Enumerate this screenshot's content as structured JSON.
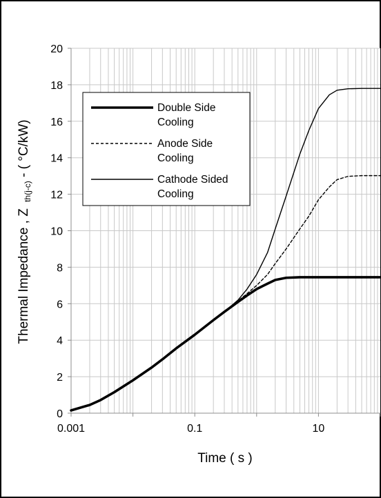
{
  "chart_data": {
    "type": "line",
    "x_scale": "log",
    "xlabel": "Time ( s )",
    "ylabel": {
      "prefix": "Thermal Impedance , Z",
      "subscript": "th(j-c)",
      "suffix": " - ( °C/kW)"
    },
    "xlim": [
      0.001,
      100
    ],
    "ylim": [
      0,
      20
    ],
    "x_ticks": [
      {
        "value": 0.001,
        "label": "0.001"
      },
      {
        "value": 0.1,
        "label": "0.1"
      },
      {
        "value": 10,
        "label": "10"
      }
    ],
    "y_ticks": [
      {
        "value": 0,
        "label": "0"
      },
      {
        "value": 2,
        "label": "2"
      },
      {
        "value": 4,
        "label": "4"
      },
      {
        "value": 6,
        "label": "6"
      },
      {
        "value": 8,
        "label": "8"
      },
      {
        "value": 10,
        "label": "10"
      },
      {
        "value": 12,
        "label": "12"
      },
      {
        "value": 14,
        "label": "14"
      },
      {
        "value": 16,
        "label": "16"
      },
      {
        "value": 18,
        "label": "18"
      },
      {
        "value": 20,
        "label": "20"
      }
    ],
    "grid": true,
    "legend_position": "top-left",
    "series": [
      {
        "name": "Double Side Cooling",
        "legend_lines": [
          "Double Side",
          "Cooling"
        ],
        "style": "thick",
        "points": [
          [
            0.001,
            0.15
          ],
          [
            0.002,
            0.45
          ],
          [
            0.003,
            0.72
          ],
          [
            0.005,
            1.15
          ],
          [
            0.01,
            1.8
          ],
          [
            0.02,
            2.5
          ],
          [
            0.03,
            2.95
          ],
          [
            0.05,
            3.55
          ],
          [
            0.1,
            4.3
          ],
          [
            0.2,
            5.1
          ],
          [
            0.3,
            5.55
          ],
          [
            0.5,
            6.1
          ],
          [
            0.7,
            6.45
          ],
          [
            1,
            6.8
          ],
          [
            1.5,
            7.1
          ],
          [
            2,
            7.3
          ],
          [
            3,
            7.42
          ],
          [
            5,
            7.45
          ],
          [
            10,
            7.45
          ],
          [
            100,
            7.45
          ]
        ]
      },
      {
        "name": "Anode Side Cooling",
        "legend_lines": [
          "Anode Side",
          "Cooling"
        ],
        "style": "dashed",
        "points": [
          [
            0.001,
            0.15
          ],
          [
            0.002,
            0.45
          ],
          [
            0.003,
            0.72
          ],
          [
            0.005,
            1.15
          ],
          [
            0.01,
            1.8
          ],
          [
            0.02,
            2.5
          ],
          [
            0.03,
            2.95
          ],
          [
            0.05,
            3.55
          ],
          [
            0.1,
            4.3
          ],
          [
            0.2,
            5.1
          ],
          [
            0.3,
            5.55
          ],
          [
            0.5,
            6.15
          ],
          [
            0.7,
            6.55
          ],
          [
            1,
            7.0
          ],
          [
            1.5,
            7.6
          ],
          [
            2,
            8.2
          ],
          [
            3,
            9.0
          ],
          [
            5,
            10.1
          ],
          [
            7,
            10.8
          ],
          [
            10,
            11.7
          ],
          [
            15,
            12.4
          ],
          [
            20,
            12.8
          ],
          [
            30,
            12.98
          ],
          [
            50,
            13.02
          ],
          [
            100,
            13.02
          ]
        ]
      },
      {
        "name": "Cathode Sided Cooling",
        "legend_lines": [
          "Cathode Sided",
          "Cooling"
        ],
        "style": "thin",
        "points": [
          [
            0.001,
            0.15
          ],
          [
            0.002,
            0.45
          ],
          [
            0.003,
            0.72
          ],
          [
            0.005,
            1.15
          ],
          [
            0.01,
            1.8
          ],
          [
            0.02,
            2.5
          ],
          [
            0.03,
            2.95
          ],
          [
            0.05,
            3.55
          ],
          [
            0.1,
            4.3
          ],
          [
            0.2,
            5.1
          ],
          [
            0.3,
            5.55
          ],
          [
            0.5,
            6.2
          ],
          [
            0.7,
            6.8
          ],
          [
            1,
            7.6
          ],
          [
            1.5,
            8.8
          ],
          [
            2,
            10.1
          ],
          [
            3,
            11.9
          ],
          [
            5,
            14.2
          ],
          [
            7,
            15.5
          ],
          [
            10,
            16.7
          ],
          [
            15,
            17.45
          ],
          [
            20,
            17.7
          ],
          [
            30,
            17.78
          ],
          [
            50,
            17.8
          ],
          [
            100,
            17.8
          ]
        ]
      }
    ]
  }
}
